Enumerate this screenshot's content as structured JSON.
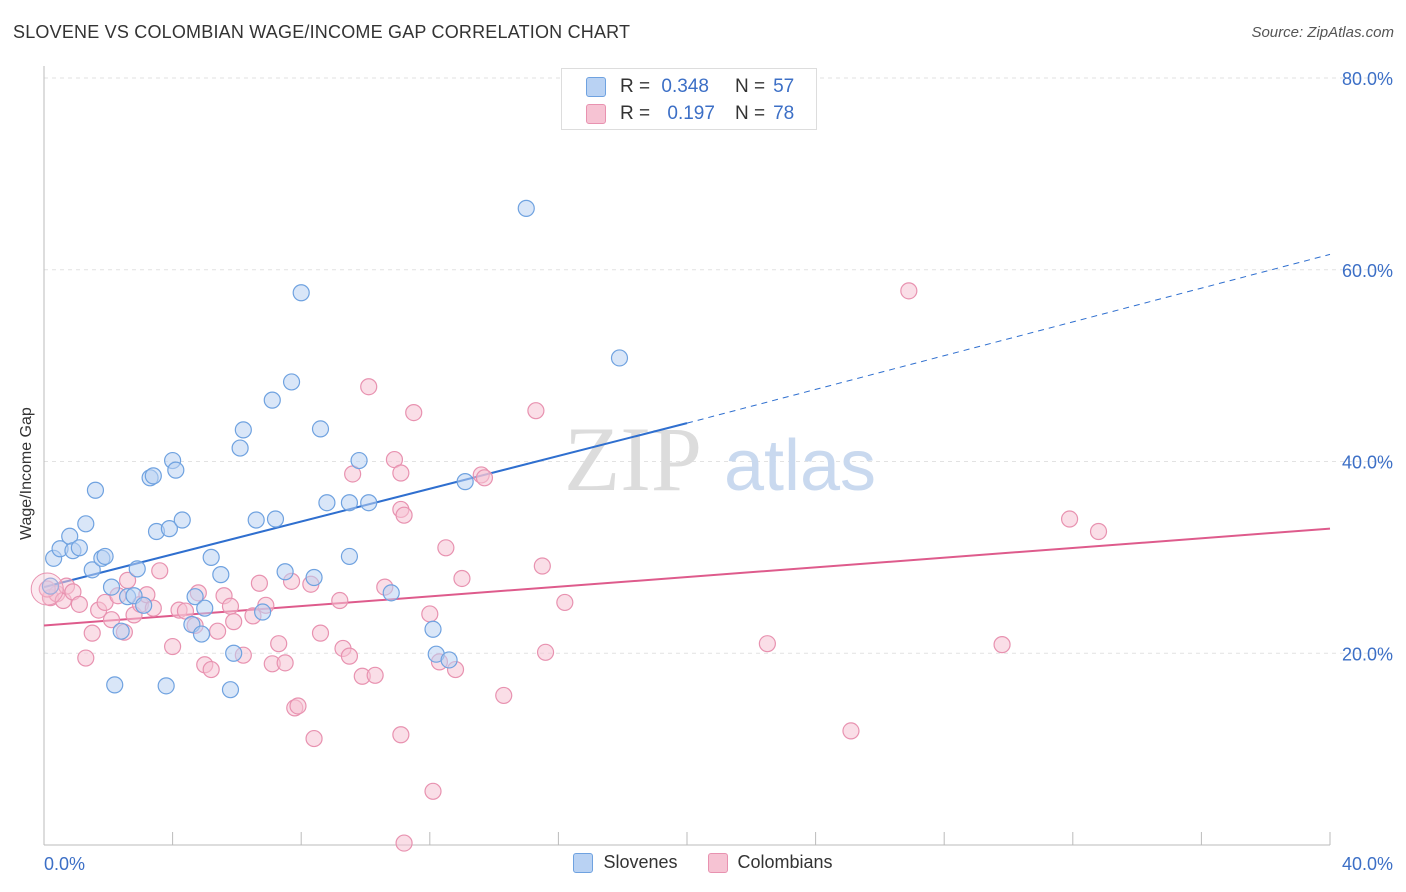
{
  "title": "SLOVENE VS COLOMBIAN WAGE/INCOME GAP CORRELATION CHART",
  "source": "Source: ZipAtlas.com",
  "watermark": {
    "zip": "ZIP",
    "atlas": "atlas"
  },
  "stats": [
    {
      "r_label": "R =",
      "r_value": "0.348",
      "n_label": "N =",
      "n_value": "57"
    },
    {
      "r_label": "R =",
      "r_value": "0.197",
      "n_label": "N =",
      "n_value": "78"
    }
  ],
  "chart_data": {
    "type": "scatter",
    "title": "SLOVENE VS COLOMBIAN WAGE/INCOME GAP CORRELATION CHART",
    "xlabel": "",
    "ylabel": "Wage/Income Gap",
    "xlim": [
      0,
      40
    ],
    "ylim": [
      0,
      80
    ],
    "x_tick_labels": [
      "0.0%",
      "40.0%"
    ],
    "y_tick_labels": [
      "20.0%",
      "40.0%",
      "60.0%",
      "80.0%"
    ],
    "y_ticks": [
      20,
      40,
      60,
      80
    ],
    "grid": true,
    "legend": "bottom",
    "series": [
      {
        "name": "Slovenes",
        "color": "#6fa2e0",
        "fill": "#b9d2f3",
        "trend": {
          "x": [
            0,
            20
          ],
          "y": [
            26.9,
            44.0
          ],
          "dashed_to": {
            "x": 40,
            "y": 61.6
          },
          "color": "#2f6fcf"
        },
        "points": [
          [
            0.3,
            29.9
          ],
          [
            0.5,
            30.9
          ],
          [
            0.8,
            32.2
          ],
          [
            0.9,
            30.7
          ],
          [
            1.1,
            31.0
          ],
          [
            1.3,
            33.5
          ],
          [
            1.5,
            28.7
          ],
          [
            1.6,
            37.0
          ],
          [
            1.8,
            29.9
          ],
          [
            1.9,
            30.1
          ],
          [
            2.1,
            26.9
          ],
          [
            2.2,
            16.7
          ],
          [
            2.4,
            22.3
          ],
          [
            2.6,
            25.9
          ],
          [
            2.8,
            26.0
          ],
          [
            2.9,
            28.8
          ],
          [
            3.1,
            25.0
          ],
          [
            3.3,
            38.3
          ],
          [
            3.4,
            38.5
          ],
          [
            3.5,
            32.7
          ],
          [
            3.8,
            16.6
          ],
          [
            3.9,
            33.0
          ],
          [
            4.0,
            40.1
          ],
          [
            4.1,
            39.1
          ],
          [
            4.3,
            33.9
          ],
          [
            4.6,
            23.0
          ],
          [
            4.7,
            25.9
          ],
          [
            4.9,
            22.0
          ],
          [
            5.0,
            24.7
          ],
          [
            5.2,
            30.0
          ],
          [
            5.5,
            28.2
          ],
          [
            5.8,
            16.2
          ],
          [
            5.9,
            20.0
          ],
          [
            6.1,
            41.4
          ],
          [
            6.2,
            43.3
          ],
          [
            6.6,
            33.9
          ],
          [
            6.8,
            24.3
          ],
          [
            7.1,
            46.4
          ],
          [
            7.2,
            34.0
          ],
          [
            7.5,
            28.5
          ],
          [
            7.7,
            48.3
          ],
          [
            8.0,
            57.6
          ],
          [
            8.4,
            27.9
          ],
          [
            8.6,
            43.4
          ],
          [
            8.8,
            35.7
          ],
          [
            9.5,
            35.7
          ],
          [
            9.5,
            30.1
          ],
          [
            9.8,
            40.1
          ],
          [
            10.1,
            35.7
          ],
          [
            10.8,
            26.3
          ],
          [
            12.1,
            22.5
          ],
          [
            12.2,
            19.9
          ],
          [
            12.6,
            19.3
          ],
          [
            13.1,
            37.9
          ],
          [
            15.0,
            66.4
          ],
          [
            17.9,
            50.8
          ],
          [
            0.2,
            27.0
          ]
        ]
      },
      {
        "name": "Colombians",
        "color": "#e892b0",
        "fill": "#f6c3d3",
        "trend": {
          "x": [
            0,
            40
          ],
          "y": [
            22.9,
            33.0
          ],
          "color": "#de5b8c"
        },
        "points": [
          [
            0.2,
            25.8
          ],
          [
            0.4,
            26.2
          ],
          [
            0.6,
            25.5
          ],
          [
            0.7,
            27.0
          ],
          [
            0.9,
            26.4
          ],
          [
            1.1,
            25.1
          ],
          [
            1.3,
            19.5
          ],
          [
            1.5,
            22.1
          ],
          [
            1.7,
            24.5
          ],
          [
            1.9,
            25.3
          ],
          [
            2.1,
            23.5
          ],
          [
            2.3,
            26.0
          ],
          [
            2.5,
            22.2
          ],
          [
            2.6,
            27.6
          ],
          [
            2.8,
            24.0
          ],
          [
            3.0,
            25.1
          ],
          [
            3.2,
            26.1
          ],
          [
            3.4,
            24.7
          ],
          [
            3.6,
            28.6
          ],
          [
            4.0,
            20.7
          ],
          [
            4.2,
            24.5
          ],
          [
            4.4,
            24.4
          ],
          [
            4.7,
            22.9
          ],
          [
            4.8,
            26.3
          ],
          [
            5.0,
            18.8
          ],
          [
            5.2,
            18.3
          ],
          [
            5.4,
            22.3
          ],
          [
            5.6,
            26.0
          ],
          [
            5.8,
            24.9
          ],
          [
            5.9,
            23.3
          ],
          [
            6.2,
            19.8
          ],
          [
            6.5,
            23.9
          ],
          [
            6.7,
            27.3
          ],
          [
            6.9,
            25.0
          ],
          [
            7.1,
            18.9
          ],
          [
            7.3,
            21.0
          ],
          [
            7.5,
            19.0
          ],
          [
            7.7,
            27.5
          ],
          [
            7.8,
            14.3
          ],
          [
            7.9,
            14.5
          ],
          [
            8.3,
            27.2
          ],
          [
            8.4,
            11.1
          ],
          [
            8.6,
            22.1
          ],
          [
            9.2,
            25.5
          ],
          [
            9.3,
            20.5
          ],
          [
            9.5,
            19.7
          ],
          [
            9.6,
            38.7
          ],
          [
            9.9,
            17.6
          ],
          [
            10.1,
            47.8
          ],
          [
            10.3,
            17.7
          ],
          [
            10.6,
            26.9
          ],
          [
            10.9,
            40.2
          ],
          [
            11.1,
            38.8
          ],
          [
            11.1,
            35.0
          ],
          [
            11.2,
            34.4
          ],
          [
            11.1,
            11.5
          ],
          [
            11.5,
            45.1
          ],
          [
            11.2,
            0.2
          ],
          [
            12.0,
            24.1
          ],
          [
            12.3,
            19.1
          ],
          [
            12.5,
            31.0
          ],
          [
            12.8,
            18.3
          ],
          [
            13.0,
            27.8
          ],
          [
            13.6,
            38.6
          ],
          [
            13.7,
            38.3
          ],
          [
            14.3,
            15.6
          ],
          [
            15.3,
            45.3
          ],
          [
            15.5,
            29.1
          ],
          [
            15.6,
            20.1
          ],
          [
            16.2,
            25.3
          ],
          [
            22.5,
            21.0
          ],
          [
            25.1,
            11.9
          ],
          [
            26.9,
            57.8
          ],
          [
            29.8,
            20.9
          ],
          [
            31.9,
            34.0
          ],
          [
            32.8,
            32.7
          ],
          [
            0.1,
            26.7
          ],
          [
            12.1,
            5.6
          ]
        ]
      }
    ]
  },
  "legend": {
    "items": [
      {
        "label": "Slovenes",
        "fill": "#b9d2f3",
        "stroke": "#6fa2e0"
      },
      {
        "label": "Colombians",
        "fill": "#f6c3d3",
        "stroke": "#e892b0"
      }
    ]
  }
}
